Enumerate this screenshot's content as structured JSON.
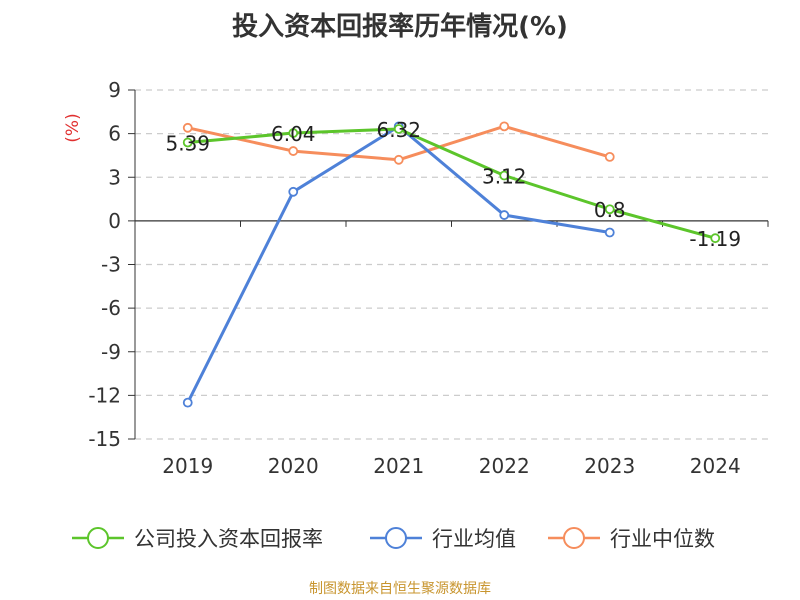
{
  "chart_data": {
    "type": "line",
    "title": "投入资本回报率历年情况(%)",
    "ylabel": "(%)",
    "categories": [
      "2019",
      "2020",
      "2021",
      "2022",
      "2023",
      "2024"
    ],
    "ylim": [
      -15,
      9
    ],
    "yticks": [
      9,
      6,
      3,
      0,
      -3,
      -6,
      -9,
      -12,
      -15
    ],
    "grid": true,
    "legend_position": "bottom",
    "series": [
      {
        "name": "公司投入资本回报率",
        "color": "#5cc52b",
        "values": [
          5.39,
          6.04,
          6.32,
          3.12,
          0.8,
          -1.19
        ],
        "data_labels": [
          "5.39",
          "6.04",
          "6.32",
          "3.12",
          "0.8",
          "-1.19"
        ]
      },
      {
        "name": "行业均值",
        "color": "#4e81d8",
        "values": [
          -12.5,
          2.0,
          6.5,
          0.4,
          -0.8,
          null
        ]
      },
      {
        "name": "行业中位数",
        "color": "#f68d5c",
        "values": [
          6.4,
          4.8,
          4.2,
          6.5,
          4.4,
          null
        ]
      }
    ]
  },
  "source": "制图数据来自恒生聚源数据库"
}
